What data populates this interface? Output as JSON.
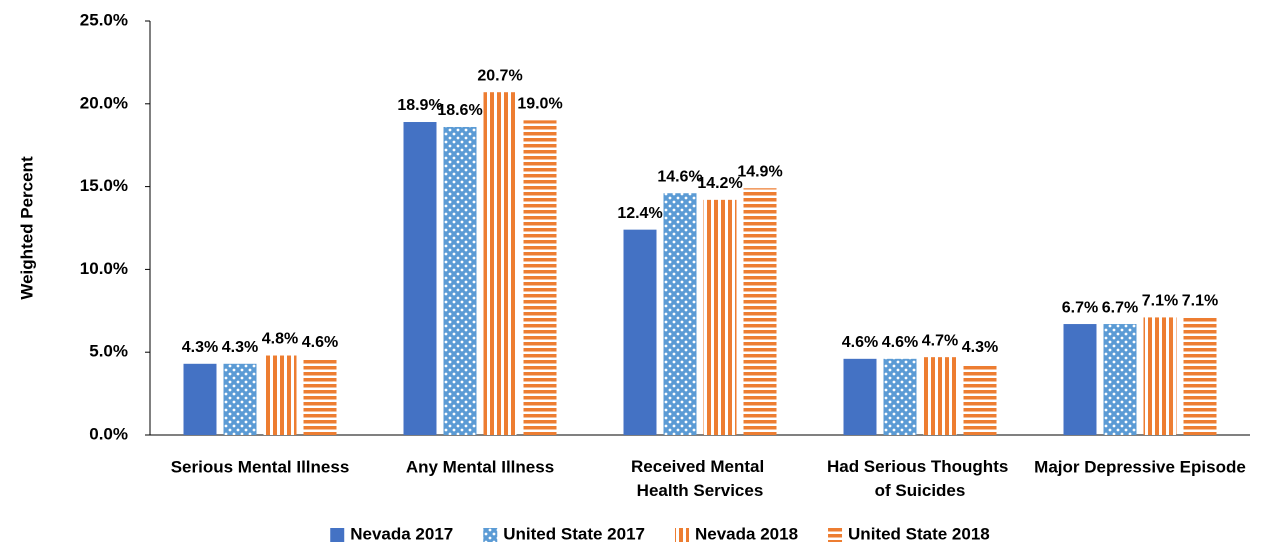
{
  "chart_data": {
    "type": "bar",
    "y_label": "Weighted Percent",
    "categories": [
      "Serious Mental Illness",
      "Any Mental Illness",
      "Received Mental Health Services",
      "Had Serious Thoughts of Suicides",
      "Major Depressive Episode"
    ],
    "series": [
      {
        "name": "Nevada 2017",
        "color": "#4472c4",
        "pattern": "solid",
        "values": [
          4.3,
          18.9,
          12.4,
          4.6,
          6.7
        ],
        "value_labels": [
          "4.3%",
          "18.9%",
          "12.4%",
          "4.6%",
          "6.7%"
        ]
      },
      {
        "name": "United State 2017",
        "color": "#5b9bd5",
        "pattern": "dots",
        "values": [
          4.3,
          18.6,
          14.6,
          4.6,
          6.7
        ],
        "value_labels": [
          "4.3%",
          "18.6%",
          "14.6%",
          "4.6%",
          "6.7%"
        ]
      },
      {
        "name": "Nevada 2018",
        "color": "#ed7d31",
        "pattern": "vertical",
        "values": [
          4.8,
          20.7,
          14.2,
          4.7,
          7.1
        ],
        "value_labels": [
          "4.8%",
          "20.7%",
          "14.2%",
          "4.7%",
          "7.1%"
        ]
      },
      {
        "name": "United State 2018",
        "color": "#ed7d31",
        "pattern": "horizontal",
        "values": [
          4.6,
          19.0,
          14.9,
          4.3,
          7.1
        ],
        "value_labels": [
          "4.6%",
          "19.0%",
          "14.9%",
          "4.3%",
          "7.1%"
        ]
      }
    ],
    "ylim": [
      0,
      25
    ],
    "yticks": [
      {
        "value": 0,
        "label": "0.0%"
      },
      {
        "value": 5,
        "label": "5.0%"
      },
      {
        "value": 10,
        "label": "10.0%"
      },
      {
        "value": 15,
        "label": "15.0%"
      },
      {
        "value": 20,
        "label": "20.0%"
      },
      {
        "value": 25,
        "label": "25.0%"
      }
    ],
    "grid": false,
    "legend": "bottom"
  }
}
